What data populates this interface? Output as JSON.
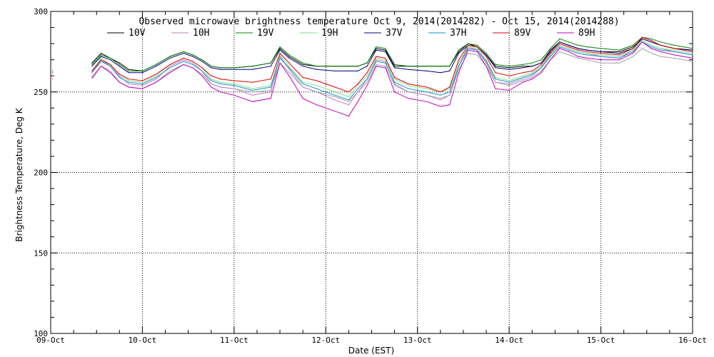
{
  "chart_data": {
    "type": "line",
    "title": "Observed microwave brightness temperature Oct  9, 2014(2014282) - Oct 15, 2014(2014288)",
    "xlabel": "Date (EST)",
    "ylabel": "Brightness Temperature, Deg K",
    "xlim": [
      9,
      16
    ],
    "ylim": [
      100,
      300
    ],
    "x_ticks": [
      {
        "value": 9,
        "label": "09-Oct"
      },
      {
        "value": 10,
        "label": "10-Oct"
      },
      {
        "value": 11,
        "label": "11-Oct"
      },
      {
        "value": 12,
        "label": "12-Oct"
      },
      {
        "value": 13,
        "label": "13-Oct"
      },
      {
        "value": 14,
        "label": "14-Oct"
      },
      {
        "value": 15,
        "label": "15-Oct"
      },
      {
        "value": 16,
        "label": "16-Oct"
      }
    ],
    "y_ticks": [
      {
        "value": 100,
        "label": "100"
      },
      {
        "value": 150,
        "label": "150"
      },
      {
        "value": 200,
        "label": "200"
      },
      {
        "value": 250,
        "label": "250"
      },
      {
        "value": 300,
        "label": "300"
      }
    ],
    "grid": true,
    "legend_position": "top",
    "x": [
      9.02,
      9.4,
      9.45,
      9.55,
      9.65,
      9.75,
      9.85,
      10.0,
      10.15,
      10.3,
      10.45,
      10.55,
      10.65,
      10.75,
      10.85,
      11.0,
      11.2,
      11.4,
      11.5,
      11.6,
      11.75,
      11.9,
      12.1,
      12.25,
      12.35,
      12.45,
      12.55,
      12.65,
      12.75,
      12.9,
      13.1,
      13.25,
      13.35,
      13.45,
      13.55,
      13.65,
      13.75,
      13.85,
      14.0,
      14.15,
      14.25,
      14.35,
      14.45,
      14.55,
      14.65,
      14.75,
      14.85,
      15.0,
      15.2,
      15.35,
      15.45,
      15.55,
      15.65,
      15.8,
      16.0
    ],
    "series": [
      {
        "name": "10V",
        "color": "#000000",
        "values": [
          263,
          null,
          268,
          274,
          271,
          268,
          264,
          263,
          267,
          272,
          275,
          273,
          270,
          266,
          265,
          265,
          266,
          268,
          277,
          272,
          267,
          266,
          266,
          266,
          266,
          268,
          277,
          276,
          266,
          266,
          266,
          266,
          266,
          275,
          280,
          278,
          273,
          266,
          265,
          266,
          266,
          268,
          276,
          281,
          279,
          277,
          276,
          275,
          275,
          278,
          283,
          281,
          279,
          277,
          276
        ]
      },
      {
        "name": "10H",
        "color": "#c080c0",
        "values": [
          260,
          null,
          262,
          270,
          266,
          260,
          255,
          254,
          258,
          266,
          270,
          268,
          263,
          255,
          253,
          252,
          248,
          250,
          272,
          264,
          253,
          250,
          245,
          242,
          250,
          258,
          270,
          269,
          255,
          250,
          248,
          245,
          248,
          266,
          278,
          276,
          268,
          256,
          255,
          258,
          260,
          265,
          273,
          279,
          277,
          275,
          274,
          272,
          271,
          276,
          282,
          279,
          277,
          275,
          273
        ]
      },
      {
        "name": "19V",
        "color": "#008000",
        "values": [
          263,
          null,
          267,
          273,
          271,
          267,
          263,
          263,
          267,
          272,
          275,
          273,
          270,
          266,
          265,
          265,
          266,
          268,
          278,
          273,
          268,
          266,
          266,
          266,
          266,
          268,
          278,
          277,
          267,
          266,
          266,
          266,
          266,
          276,
          280,
          279,
          274,
          267,
          266,
          267,
          268,
          270,
          277,
          283,
          281,
          279,
          278,
          277,
          276,
          279,
          284,
          283,
          281,
          279,
          277
        ]
      },
      {
        "name": "19H",
        "color": "#80e080",
        "values": [
          261,
          null,
          263,
          271,
          267,
          261,
          257,
          256,
          260,
          267,
          271,
          269,
          265,
          258,
          256,
          255,
          252,
          254,
          273,
          266,
          256,
          254,
          250,
          247,
          254,
          260,
          271,
          270,
          258,
          254,
          252,
          250,
          252,
          268,
          278,
          277,
          270,
          259,
          257,
          260,
          262,
          266,
          273,
          279,
          277,
          275,
          274,
          273,
          272,
          276,
          282,
          279,
          277,
          276,
          274
        ]
      },
      {
        "name": "37V",
        "color": "#000080",
        "values": [
          262,
          null,
          266,
          272,
          270,
          266,
          262,
          262,
          266,
          271,
          274,
          272,
          269,
          265,
          264,
          264,
          264,
          266,
          276,
          271,
          266,
          264,
          263,
          263,
          263,
          266,
          276,
          275,
          265,
          264,
          263,
          262,
          263,
          274,
          279,
          278,
          273,
          265,
          264,
          265,
          266,
          268,
          275,
          281,
          279,
          277,
          276,
          275,
          274,
          277,
          283,
          281,
          279,
          277,
          276
        ]
      },
      {
        "name": "37H",
        "color": "#1090d0",
        "values": [
          260,
          null,
          262,
          269,
          266,
          259,
          256,
          255,
          259,
          265,
          269,
          267,
          263,
          257,
          255,
          254,
          251,
          253,
          271,
          265,
          255,
          252,
          248,
          245,
          252,
          258,
          269,
          268,
          256,
          252,
          250,
          248,
          250,
          266,
          277,
          276,
          269,
          258,
          256,
          259,
          261,
          265,
          272,
          278,
          276,
          274,
          273,
          272,
          271,
          275,
          281,
          278,
          276,
          275,
          273
        ]
      },
      {
        "name": "89V",
        "color": "#e00000",
        "values": [
          260,
          null,
          263,
          270,
          267,
          261,
          258,
          257,
          261,
          267,
          271,
          269,
          265,
          260,
          258,
          257,
          256,
          258,
          274,
          268,
          259,
          257,
          253,
          250,
          255,
          262,
          272,
          271,
          259,
          255,
          253,
          250,
          253,
          270,
          279,
          278,
          272,
          262,
          260,
          262,
          263,
          267,
          274,
          280,
          278,
          276,
          275,
          274,
          273,
          277,
          284,
          282,
          279,
          277,
          275
        ]
      },
      {
        "name": "89H",
        "color": "#c000c0",
        "values": [
          258,
          null,
          259,
          266,
          262,
          256,
          253,
          252,
          256,
          262,
          267,
          265,
          260,
          253,
          250,
          248,
          244,
          246,
          268,
          260,
          246,
          242,
          238,
          235,
          244,
          254,
          266,
          265,
          250,
          246,
          244,
          241,
          242,
          262,
          276,
          275,
          266,
          252,
          251,
          256,
          258,
          262,
          270,
          277,
          275,
          272,
          271,
          270,
          270,
          274,
          281,
          277,
          275,
          273,
          271
        ]
      }
    ],
    "secondary_traces": [
      {
        "color": "#a0a0a0",
        "values": [
          256,
          null,
          258,
          266,
          263,
          256,
          253,
          252,
          256,
          263,
          267,
          265,
          261,
          255,
          253,
          252,
          250,
          251,
          268,
          262,
          253,
          250,
          247,
          244,
          250,
          256,
          267,
          266,
          254,
          250,
          248,
          246,
          248,
          264,
          274,
          273,
          266,
          256,
          254,
          257,
          259,
          263,
          270,
          275,
          273,
          271,
          270,
          268,
          268,
          272,
          277,
          274,
          272,
          271,
          269
        ]
      }
    ]
  }
}
